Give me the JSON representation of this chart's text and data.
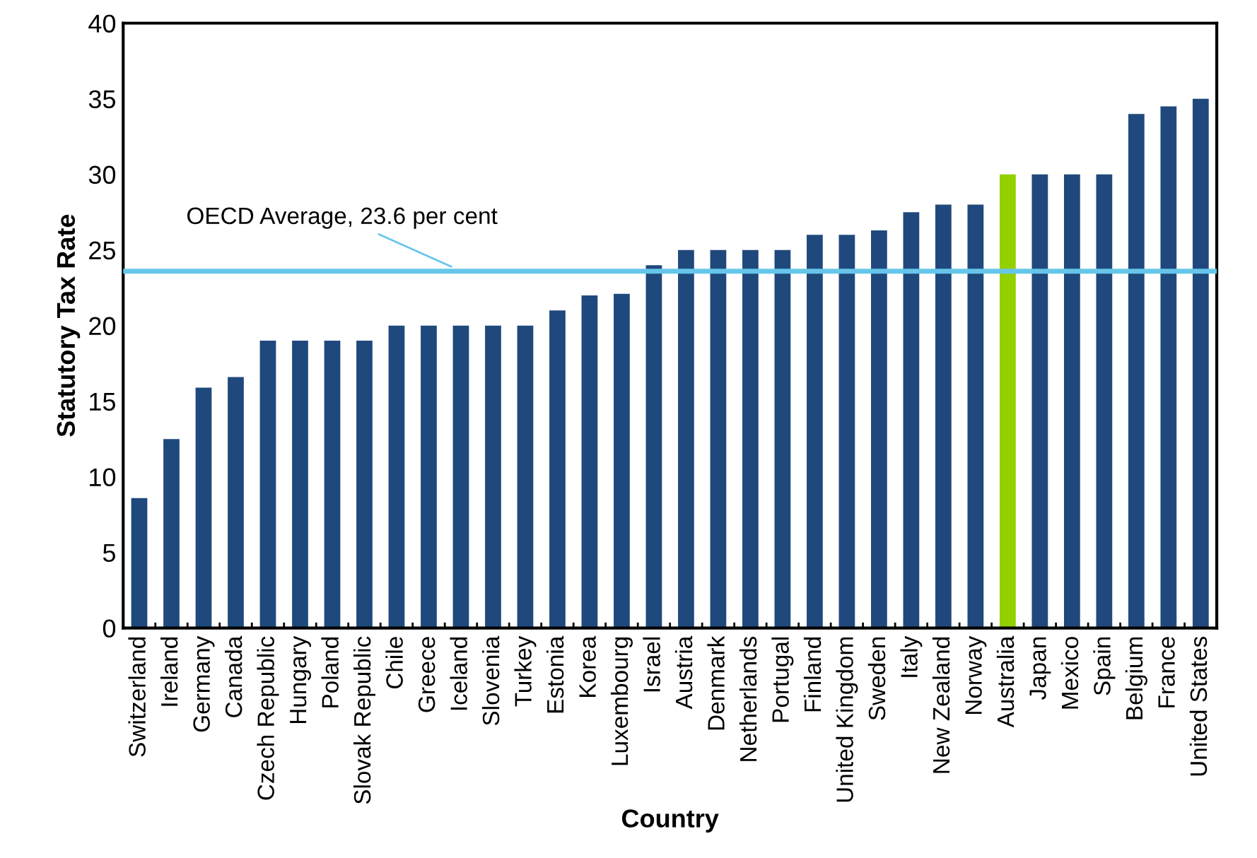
{
  "chart_data": {
    "type": "bar",
    "xlabel": "Country",
    "ylabel": "Statutory Tax Rate",
    "categories": [
      "Switzerland",
      "Ireland",
      "Germany",
      "Canada",
      "Czech Republic",
      "Hungary",
      "Poland",
      "Slovak Republic",
      "Chile",
      "Greece",
      "Iceland",
      "Slovenia",
      "Turkey",
      "Estonia",
      "Korea",
      "Luxembourg",
      "Israel",
      "Austria",
      "Denmark",
      "Netherlands",
      "Portugal",
      "Finland",
      "United Kingdom",
      "Sweden",
      "Italy",
      "New Zealand",
      "Norway",
      "Australia",
      "Japan",
      "Mexico",
      "Spain",
      "Belgium",
      "France",
      "United States"
    ],
    "values": [
      8.6,
      12.5,
      15.9,
      16.6,
      19,
      19,
      19,
      19,
      20,
      20,
      20,
      20,
      20,
      21,
      22,
      22.1,
      24,
      25,
      25,
      25,
      25,
      26,
      26,
      26.3,
      27.5,
      28,
      28,
      30,
      30,
      30,
      30,
      34,
      34.5,
      35
    ],
    "colors": [
      "#1f497d",
      "#1f497d",
      "#1f497d",
      "#1f497d",
      "#1f497d",
      "#1f497d",
      "#1f497d",
      "#1f497d",
      "#1f497d",
      "#1f497d",
      "#1f497d",
      "#1f497d",
      "#1f497d",
      "#1f497d",
      "#1f497d",
      "#1f497d",
      "#1f497d",
      "#1f497d",
      "#1f497d",
      "#1f497d",
      "#1f497d",
      "#1f497d",
      "#1f497d",
      "#1f497d",
      "#1f497d",
      "#1f497d",
      "#1f497d",
      "#92d000",
      "#1f497d",
      "#1f497d",
      "#1f497d",
      "#1f497d",
      "#1f497d",
      "#1f497d"
    ],
    "ylim": [
      0,
      40
    ],
    "yticks": [
      0,
      5,
      10,
      15,
      20,
      25,
      30,
      35,
      40
    ],
    "grid": false,
    "legend": false,
    "ref_lines": [
      {
        "axis": "y",
        "value": 23.6,
        "label": "OECD Average, 23.6 per cent",
        "color": "#66c6ea",
        "line_style": "solid"
      }
    ]
  }
}
